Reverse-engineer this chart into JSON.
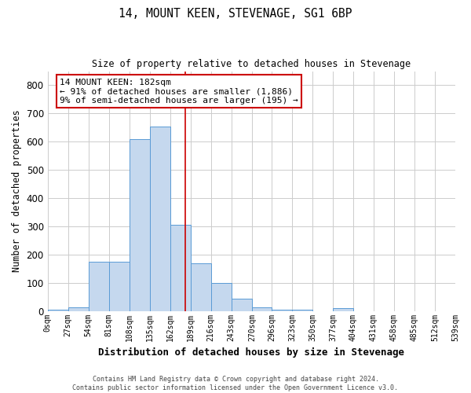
{
  "title": "14, MOUNT KEEN, STEVENAGE, SG1 6BP",
  "subtitle": "Size of property relative to detached houses in Stevenage",
  "xlabel": "Distribution of detached houses by size in Stevenage",
  "ylabel": "Number of detached properties",
  "bin_edges": [
    0,
    27,
    54,
    81,
    108,
    135,
    162,
    189,
    216,
    243,
    270,
    296,
    323,
    350,
    377,
    404,
    431,
    458,
    485,
    512,
    539
  ],
  "bar_heights": [
    5,
    12,
    175,
    175,
    610,
    655,
    305,
    170,
    100,
    42,
    12,
    5,
    5,
    0,
    10,
    0,
    0,
    0,
    0,
    0
  ],
  "bar_color": "#c5d8ee",
  "bar_edge_color": "#5a9bd5",
  "reference_line_x": 182,
  "reference_line_color": "#cc0000",
  "annotation_text": "14 MOUNT KEEN: 182sqm\n← 91% of detached houses are smaller (1,886)\n9% of semi-detached houses are larger (195) →",
  "annotation_box_color": "white",
  "annotation_box_edge_color": "#cc0000",
  "ylim": [
    0,
    850
  ],
  "yticks": [
    0,
    100,
    200,
    300,
    400,
    500,
    600,
    700,
    800
  ],
  "tick_labels": [
    "0sqm",
    "27sqm",
    "54sqm",
    "81sqm",
    "108sqm",
    "135sqm",
    "162sqm",
    "189sqm",
    "216sqm",
    "243sqm",
    "270sqm",
    "296sqm",
    "323sqm",
    "350sqm",
    "377sqm",
    "404sqm",
    "431sqm",
    "458sqm",
    "485sqm",
    "512sqm",
    "539sqm"
  ],
  "footer_line1": "Contains HM Land Registry data © Crown copyright and database right 2024.",
  "footer_line2": "Contains public sector information licensed under the Open Government Licence v3.0.",
  "background_color": "#ffffff",
  "grid_color": "#cccccc"
}
